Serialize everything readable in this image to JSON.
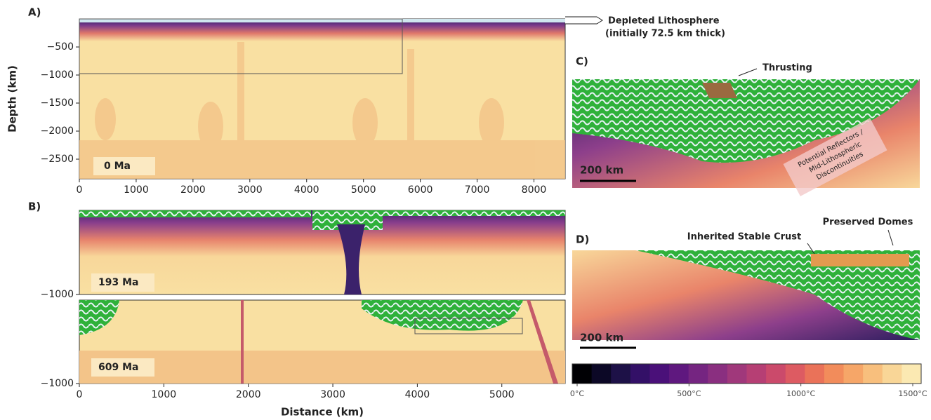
{
  "panels": {
    "A": {
      "label": "A)",
      "ylabel": "Depth (km)",
      "time": "0 Ma",
      "xlim": [
        0,
        8550
      ],
      "xticks": [
        0,
        1000,
        2000,
        3000,
        4000,
        5000,
        6000,
        7000,
        8000
      ],
      "ylim": [
        -2850,
        0
      ],
      "yticks": [
        {
          "value": -500,
          "label": "−500"
        },
        {
          "value": -1000,
          "label": "−1000"
        },
        {
          "value": -1500,
          "label": "−1500"
        },
        {
          "value": -2000,
          "label": "−2000"
        },
        {
          "value": -2500,
          "label": "−2500"
        }
      ],
      "annotation": [
        "Depleted Lithosphere",
        "(initially 72.5 km thick)"
      ]
    },
    "B": {
      "label": "B)",
      "xlabel": "Distance (km)",
      "xlim": [
        0,
        5750
      ],
      "xticks": [
        0,
        1000,
        2000,
        3000,
        4000,
        5000
      ],
      "ylim": [
        -1000,
        0
      ],
      "top": {
        "time": "193 Ma",
        "yticks": [
          {
            "value": -1000,
            "label": "−1000"
          }
        ]
      },
      "bottom": {
        "time": "609 Ma",
        "yticks": [
          {
            "value": -1000,
            "label": "−1000"
          }
        ]
      }
    },
    "C": {
      "label": "C)",
      "annotations": [
        "Thrusting",
        "Potential Reflectors /",
        "Mid-Lithospheric",
        "Discontinuities"
      ],
      "scale": "200 km"
    },
    "D": {
      "label": "D)",
      "annotations": [
        "Inherited Stable Crust",
        "Preserved Domes"
      ],
      "scale": "200 km"
    },
    "colorbar": {
      "lim": [
        0,
        1500
      ],
      "ticks": [
        {
          "value": 0,
          "label": "0°C"
        },
        {
          "value": 500,
          "label": "500°C"
        },
        {
          "value": 1000,
          "label": "1000°C"
        },
        {
          "value": 1500,
          "label": "1500°C"
        }
      ]
    }
  }
}
